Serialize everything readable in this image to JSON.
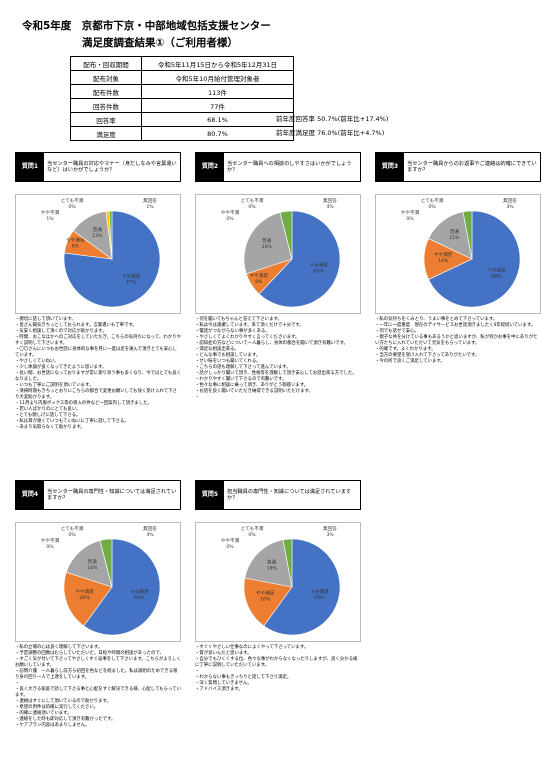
{
  "header": {
    "title_line1": "令和5年度　京都市下京・中部地域包括支援センター",
    "title_line2": "満足度調査結果①（ご利用者様）"
  },
  "table": {
    "rows": [
      [
        "配布・回収期間",
        "令和5年11月15日から令和5年12月31日"
      ],
      [
        "配布対象",
        "令和5年10月給付管理対象者"
      ],
      [
        "配布件数",
        "113件"
      ],
      [
        "回答件数",
        "77件"
      ],
      [
        "回答率",
        "68.1%"
      ],
      [
        "満足度",
        "80.7%"
      ]
    ],
    "notes": [
      "前年度回答率 50.7%(前年比+17.4%)",
      "前年度満足度 76.0%(前年比+4.7%)"
    ]
  },
  "questions": [
    {
      "label": "質問1",
      "text": "当センター職員の対応やマナー（身だしなみや言葉遣いなど）はいかがでしょうか？",
      "chart_data": {
        "type": "pie",
        "categories": [
          "十分満足",
          "やや満足",
          "普通",
          "やや不満",
          "とても不満",
          "無回答"
        ],
        "values": [
          77,
          8,
          13,
          1,
          0,
          1
        ],
        "value_labels": [
          "77%",
          "8%",
          "13%",
          "1%",
          "0%",
          "1%"
        ],
        "colors": [
          "#4472c4",
          "#ed7d31",
          "#a5a5a5",
          "#ffc000",
          "#5b9bd5",
          "#70ad47"
        ]
      },
      "comments": [
        "・親切に話して頂いています。",
        "・皆さん陽気きちっとしておられます。言葉遣いも丁寧です。",
        "・気安く相談して頂くので対応が助かります。",
        "・時間、おこなほかへのご対応をしていただき、こちらの気持ちになって、わかりやすく説明して下さいます。",
        "・〇〇さんにいつもお世話に身体的な事を月に一度は足を運んで頂きとても安心しています。",
        "・やさしくていねい。",
        "・少し体調が良くなってきたように思います。",
        "・長い間、お世話になっておりますが常に寄り添う事も多くなり、今ではとても良くなりました。",
        "・いつも丁寧にご説明を頂いています。",
        "・清掃時期もきちっとおりにこちらの都合で変更お願いしても快く受け入れて下さり大変助かります。",
        "・11月より内服ボックス等の導入の件など一回案内して頂きました。",
        "・若い人ばかりのにとても良い。",
        "・とても親しげに話して下さる。",
        "・私は耳が遠くていつもていねいに丁寧に話して下さる。",
        "・あまり気取らなくて助かります。"
      ]
    },
    {
      "label": "質問2",
      "text": "当センター職員への相談のしやすさはいかがでしょうか？",
      "chart_data": {
        "type": "pie",
        "categories": [
          "十分満足",
          "やや満足",
          "普通",
          "やや不満",
          "とても不満",
          "無回答"
        ],
        "values": [
          62,
          8,
          26,
          0,
          0,
          4
        ],
        "value_labels": [
          "62%",
          "8%",
          "26%",
          "0%",
          "0%",
          "4%"
        ],
        "colors": [
          "#4472c4",
          "#ed7d31",
          "#a5a5a5",
          "#ffc000",
          "#5b9bd5",
          "#70ad47"
        ]
      },
      "comments": [
        "・何を聞いてもちゃんと答えて下さいます。",
        "・私は今は遠慮しています。来て頂くだけで十分です。",
        "・電話がつながらない事が多くある。",
        "・やさしくてよくわかりやすく言ってくださいます。",
        "・認知症の方などについて一人暮らし、身体の都合を聞いて頂き有難いです。",
        "・満足な相談出来る。",
        "・どんな事でも相談しています。",
        "・せい昧をいつも聞いてくれる。",
        "・こちらの話も理解して下さって進んでいます。",
        "・話がしっかり聞いて頂き、性格等を理解して頂き安心してお話出来る方でした。",
        "・わかりやすく聞いて下さるので有難いです。",
        "・色々な事に相談に乗って頂き、ありがとう御座います。",
        "・お話を良く聞いていただき納得できる説明いただけます。",
        "・"
      ]
    },
    {
      "label": "質問3",
      "text": "当センター職員からのお返事やご連絡は的確にできていますか？",
      "chart_data": {
        "type": "pie",
        "categories": [
          "十分満足",
          "やや満足",
          "普通",
          "やや不満",
          "とても不満",
          "無回答"
        ],
        "values": [
          68,
          14,
          15,
          0,
          0,
          3
        ],
        "value_labels": [
          "68%",
          "14%",
          "15%",
          "0%",
          "0%",
          "3%"
        ],
        "colors": [
          "#4472c4",
          "#ed7d31",
          "#a5a5a5",
          "#ffc000",
          "#5b9bd5",
          "#70ad47"
        ]
      },
      "comments": [
        "・私の気持ちをくみとり、うまい事をとめて下さっています。",
        "・一年に一度重度　現在のデイサービスお世話頂きましたく4年程続いています。",
        "・何でも話せて安心。",
        "・親子な共を分けている事もあるうかと思いますが、私が何かお事を中にありがたい方たちに入れていただいて元気をもらっています。",
        "・的確です。よくわかります。",
        "・当方の要望を受け入れて下さってありがたいです。",
        "・今の所で良くご満足しています。"
      ]
    },
    {
      "label": "質問4",
      "text": "当センター職員の専門性・知識については満足されていますか？",
      "chart_data": {
        "type": "pie",
        "categories": [
          "十分満足",
          "やや満足",
          "普通",
          "やや不満",
          "とても不満",
          "無回答"
        ],
        "values": [
          60,
          20,
          16,
          0,
          0,
          4
        ],
        "value_labels": [
          "60%",
          "20%",
          "16%",
          "0%",
          "0%",
          "4%"
        ],
        "colors": [
          "#4472c4",
          "#ed7d31",
          "#a5a5a5",
          "#ffc000",
          "#5b9bd5",
          "#70ad47"
        ]
      },
      "comments": [
        "・私の立場の心は良く理解して下さいます。",
        "・予定調整の回数はむらしていただいた。日程や時間の相談があったので、",
        "・すごく気が付いて下さってやさしくすぐ返事をして下さいます。こちらがよろしくお願いしています。",
        "・訪問介護　一人暮らし前方ら初回を色などを経ました。私は調剤のためできる限り身の回り一人で上達をしています。",
        "・",
        "・良く大きる家庭で話して下さる事と心配をすぐ解決できる様、心配してもらっています。",
        "・連絡はすぐにして頂いているので助かります。",
        "・希望の用件は的確に実行してください。",
        "・的確に連絡頂いています。",
        "・連絡をした時も即対応して頂き有難かったです。",
        "・ケアプラン内容はあまりしません。"
      ]
    },
    {
      "label": "質問5",
      "text": "担当職員の専門性・知識については満足されていますか？",
      "chart_data": {
        "type": "pie",
        "categories": [
          "十分満足",
          "やや満足",
          "普通",
          "やや不満",
          "とても不満",
          "無回答"
        ],
        "values": [
          60,
          18,
          19,
          0,
          0,
          3
        ],
        "value_labels": [
          "60%",
          "18%",
          "19%",
          "0%",
          "0%",
          "3%"
        ],
        "colors": [
          "#4472c4",
          "#ed7d31",
          "#a5a5a5",
          "#ffc000",
          "#5b9bd5",
          "#70ad47"
        ]
      },
      "comments": [
        "・すぐくやさしい仕事なのによくやって下さっています。",
        "・質が良いんだと思います。",
        "・自分でもひくくする位、色々な事がわからなくなったりしますが、良く分かる様に丁寧に説明していただいています。",
        "・",
        "・わからない事もきっちりと話して下さり満足。",
        "・深く質問していきません。",
        "・アドバイス頂きます。"
      ]
    }
  ]
}
